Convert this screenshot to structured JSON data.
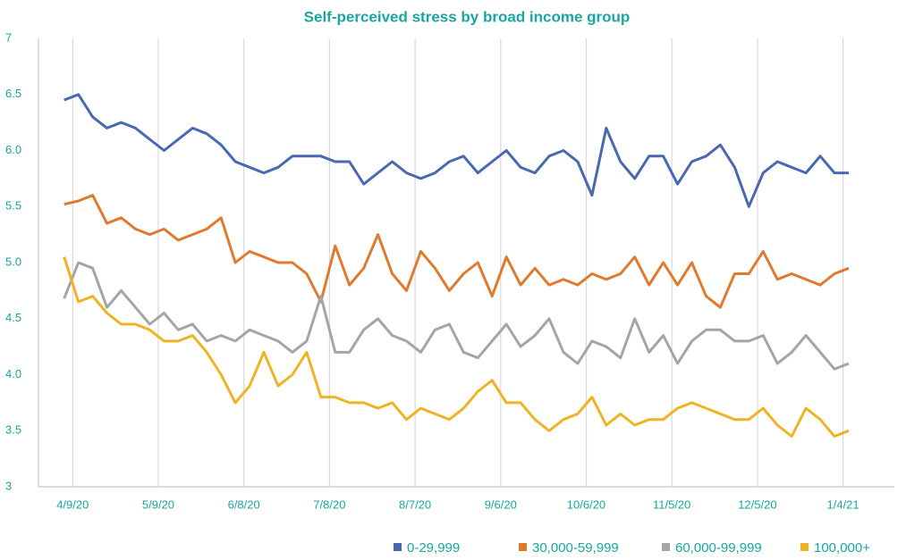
{
  "chart_data": {
    "type": "line",
    "title": "Self-perceived stress by broad income group",
    "x": [
      "4/6/20",
      "4/11/20",
      "4/16/20",
      "4/21/20",
      "4/26/20",
      "5/1/20",
      "5/6/20",
      "5/11/20",
      "5/16/20",
      "5/21/20",
      "5/26/20",
      "5/31/20",
      "6/5/20",
      "6/10/20",
      "6/15/20",
      "6/20/20",
      "6/25/20",
      "6/30/20",
      "7/5/20",
      "7/10/20",
      "7/15/20",
      "7/20/20",
      "7/25/20",
      "7/30/20",
      "8/4/20",
      "8/9/20",
      "8/14/20",
      "8/19/20",
      "8/24/20",
      "8/29/20",
      "9/3/20",
      "9/8/20",
      "9/13/20",
      "9/18/20",
      "9/23/20",
      "9/28/20",
      "10/3/20",
      "10/8/20",
      "10/13/20",
      "10/18/20",
      "10/23/20",
      "10/28/20",
      "11/2/20",
      "11/7/20",
      "11/12/20",
      "11/17/20",
      "11/22/20",
      "11/27/20",
      "12/2/20",
      "12/7/20",
      "12/12/20",
      "12/17/20",
      "12/22/20",
      "12/27/20",
      "1/1/21",
      "1/6/21"
    ],
    "series": [
      {
        "name": "0-29,999",
        "color": "#4a68b0",
        "values": [
          6.45,
          6.5,
          6.3,
          6.2,
          6.25,
          6.2,
          6.1,
          6.0,
          6.1,
          6.2,
          6.15,
          6.05,
          5.9,
          5.85,
          5.8,
          5.85,
          5.95,
          5.95,
          5.95,
          5.9,
          5.9,
          5.7,
          5.8,
          5.9,
          5.8,
          5.75,
          5.8,
          5.9,
          5.95,
          5.8,
          5.9,
          6.0,
          5.85,
          5.8,
          5.95,
          6.0,
          5.9,
          5.6,
          6.2,
          5.9,
          5.75,
          5.95,
          5.95,
          5.7,
          5.9,
          5.95,
          6.05,
          5.85,
          5.5,
          5.8,
          5.9,
          5.85,
          5.8,
          5.95,
          5.8,
          5.8
        ]
      },
      {
        "name": "30,000-59,999",
        "color": "#e07a2e",
        "values": [
          5.52,
          5.55,
          5.6,
          5.35,
          5.4,
          5.3,
          5.25,
          5.3,
          5.2,
          5.25,
          5.3,
          5.4,
          5.0,
          5.1,
          5.05,
          5.0,
          5.0,
          4.9,
          4.65,
          5.15,
          4.8,
          4.95,
          5.25,
          4.9,
          4.75,
          5.1,
          4.95,
          4.75,
          4.9,
          5.0,
          4.7,
          5.05,
          4.8,
          4.95,
          4.8,
          4.85,
          4.8,
          4.9,
          4.85,
          4.9,
          5.05,
          4.8,
          5.0,
          4.8,
          5.0,
          4.7,
          4.6,
          4.9,
          4.9,
          5.1,
          4.85,
          4.9,
          4.85,
          4.8,
          4.9,
          4.95
        ]
      },
      {
        "name": "60,000-99,999",
        "color": "#a5a5a5",
        "values": [
          4.68,
          5.0,
          4.95,
          4.6,
          4.75,
          4.6,
          4.45,
          4.55,
          4.4,
          4.45,
          4.3,
          4.35,
          4.3,
          4.4,
          4.35,
          4.3,
          4.2,
          4.3,
          4.7,
          4.2,
          4.2,
          4.4,
          4.5,
          4.35,
          4.3,
          4.2,
          4.4,
          4.45,
          4.2,
          4.15,
          4.3,
          4.45,
          4.25,
          4.35,
          4.5,
          4.2,
          4.1,
          4.3,
          4.25,
          4.15,
          4.5,
          4.2,
          4.35,
          4.1,
          4.3,
          4.4,
          4.4,
          4.3,
          4.3,
          4.35,
          4.1,
          4.2,
          4.35,
          4.2,
          4.05,
          4.1
        ]
      },
      {
        "name": "100,000+",
        "color": "#f0b323",
        "values": [
          5.05,
          4.65,
          4.7,
          4.55,
          4.45,
          4.45,
          4.4,
          4.3,
          4.3,
          4.35,
          4.2,
          4.0,
          3.75,
          3.9,
          4.2,
          3.9,
          4.0,
          4.2,
          3.8,
          3.8,
          3.75,
          3.75,
          3.7,
          3.75,
          3.6,
          3.7,
          3.65,
          3.6,
          3.7,
          3.85,
          3.95,
          3.75,
          3.75,
          3.6,
          3.5,
          3.6,
          3.65,
          3.8,
          3.55,
          3.65,
          3.55,
          3.6,
          3.6,
          3.7,
          3.75,
          3.7,
          3.65,
          3.6,
          3.6,
          3.7,
          3.55,
          3.45,
          3.7,
          3.6,
          3.45,
          3.5
        ]
      }
    ],
    "xlim": [
      "3/28/20",
      "1/22/21"
    ],
    "xticks": [
      "4/9/20",
      "5/9/20",
      "6/8/20",
      "7/8/20",
      "8/7/20",
      "9/6/20",
      "10/6/20",
      "11/5/20",
      "12/5/20",
      "1/4/21"
    ],
    "ylim": [
      3,
      7
    ],
    "yticks": [
      3,
      3.5,
      {
        "value": 4,
        "label": "4.0"
      },
      4.5,
      {
        "value": 5,
        "label": "5.0"
      },
      5.5,
      {
        "value": 6,
        "label": "6.0"
      },
      6.5,
      7
    ],
    "grid": true,
    "legend": "bottom-right"
  }
}
